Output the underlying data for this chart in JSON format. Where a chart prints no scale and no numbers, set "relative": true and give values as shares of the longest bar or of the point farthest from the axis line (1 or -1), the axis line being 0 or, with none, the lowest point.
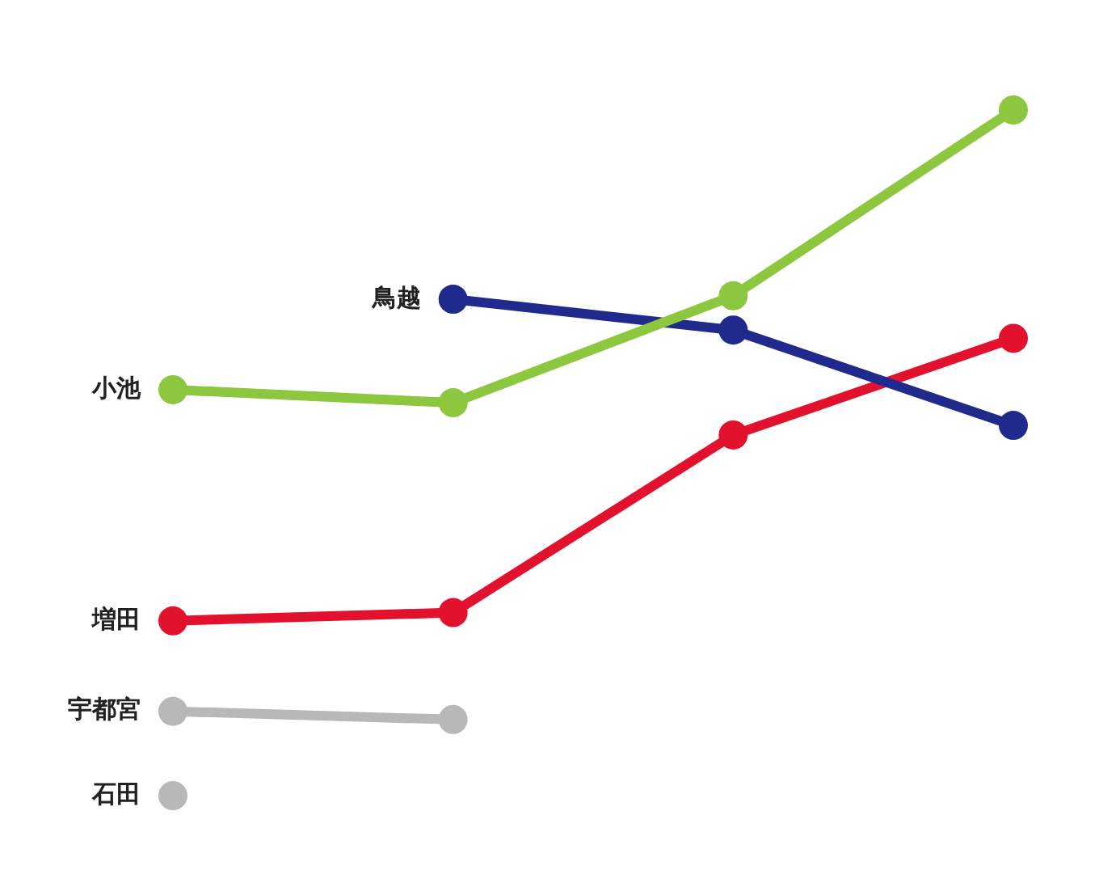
{
  "chart_data": {
    "type": "line",
    "relative": true,
    "categories": [
      null,
      null,
      null,
      null
    ],
    "legend": false,
    "grid": false,
    "marker": "circle",
    "line_style": "solid",
    "series": [
      {
        "name": "小池",
        "color": "#8dc63f",
        "values": [
          0.592,
          0.573,
          0.729,
          1
        ]
      },
      {
        "name": "鳥越",
        "color": "#1f2a8c",
        "values": [
          null,
          0.724,
          0.679,
          0.54
        ]
      },
      {
        "name": "増田",
        "color": "#e2112e",
        "values": [
          0.255,
          0.267,
          0.526,
          0.667
        ]
      },
      {
        "name": "宇都宮",
        "color": "#b8b8b8",
        "values": [
          0.123,
          0.111,
          null,
          null
        ]
      },
      {
        "name": "石田",
        "color": "#b8b8b8",
        "values": [
          0,
          null,
          null,
          null
        ]
      }
    ]
  }
}
